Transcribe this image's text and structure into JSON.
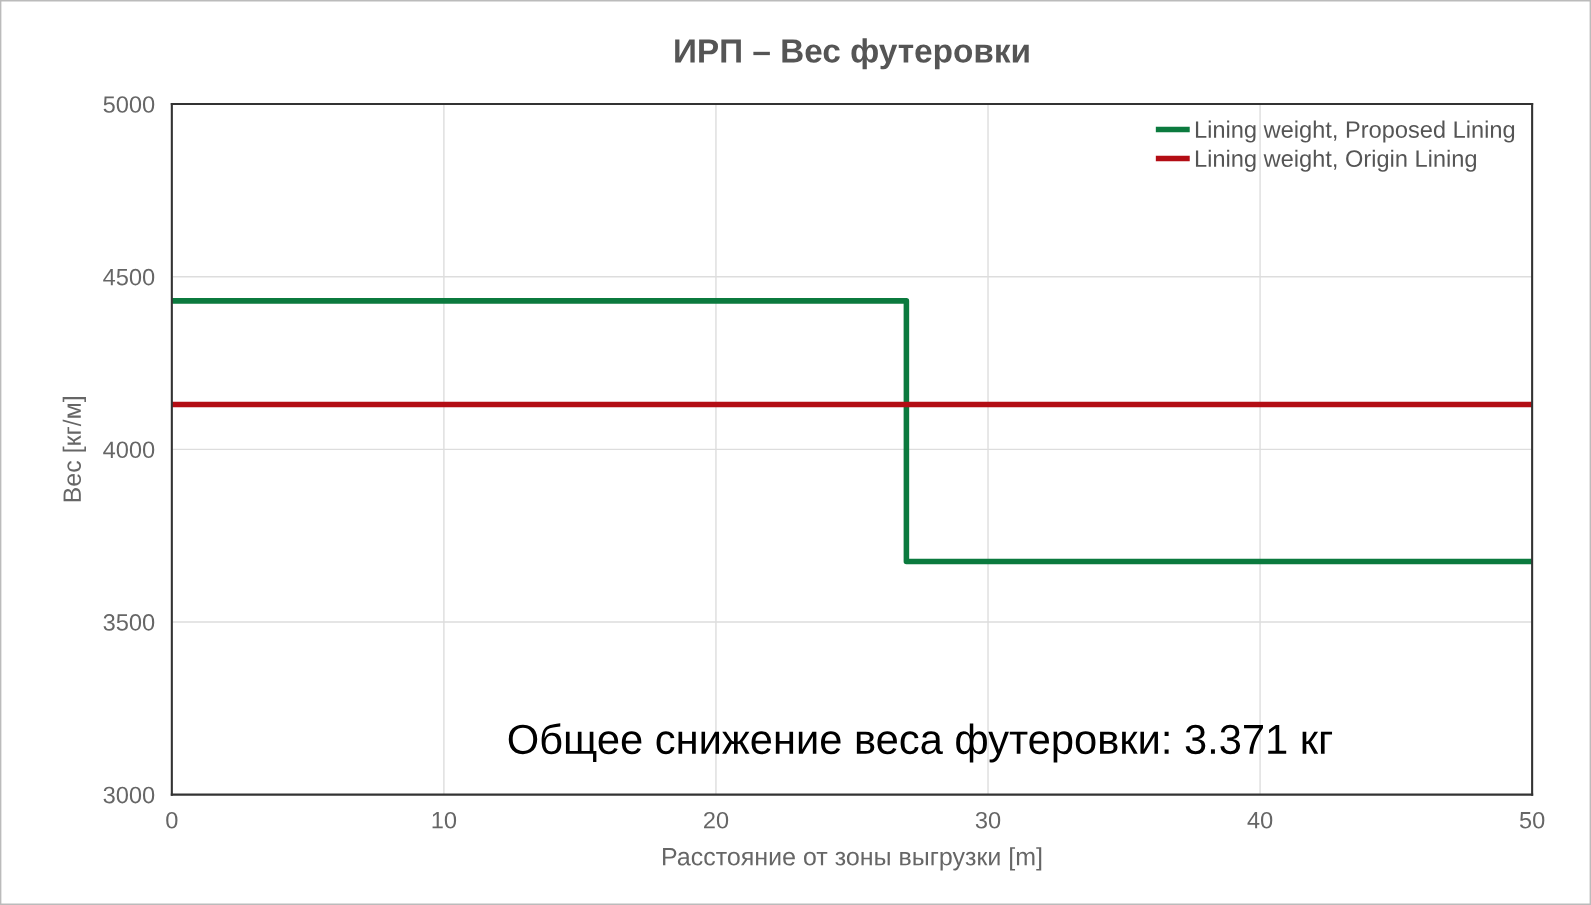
{
  "chart_data": {
    "type": "step",
    "title": "ИРП – Вес футеровки",
    "xlabel": "Расстояние от зоны выгрузки [m]",
    "ylabel": "Вес [кг/м]",
    "series": [
      {
        "name": "Lining weight, Proposed Lining",
        "color": "#0b7a3e",
        "x": [
          0,
          27,
          50
        ],
        "values": [
          4430,
          3675,
          3675
        ]
      },
      {
        "name": "Lining weight, Origin Lining",
        "color": "#b30d14",
        "x": [
          0,
          50
        ],
        "values": [
          4130,
          4130
        ]
      }
    ],
    "xlim": [
      0,
      50
    ],
    "xticks": [
      0,
      10,
      20,
      30,
      40,
      50
    ],
    "ylim": [
      3000,
      5000
    ],
    "yticks": [
      3000,
      3500,
      4000,
      4500,
      5000
    ],
    "grid": true,
    "legend": "top right",
    "annotations": [
      "Общее снижение веса футеровки: 3.371 кг"
    ]
  }
}
